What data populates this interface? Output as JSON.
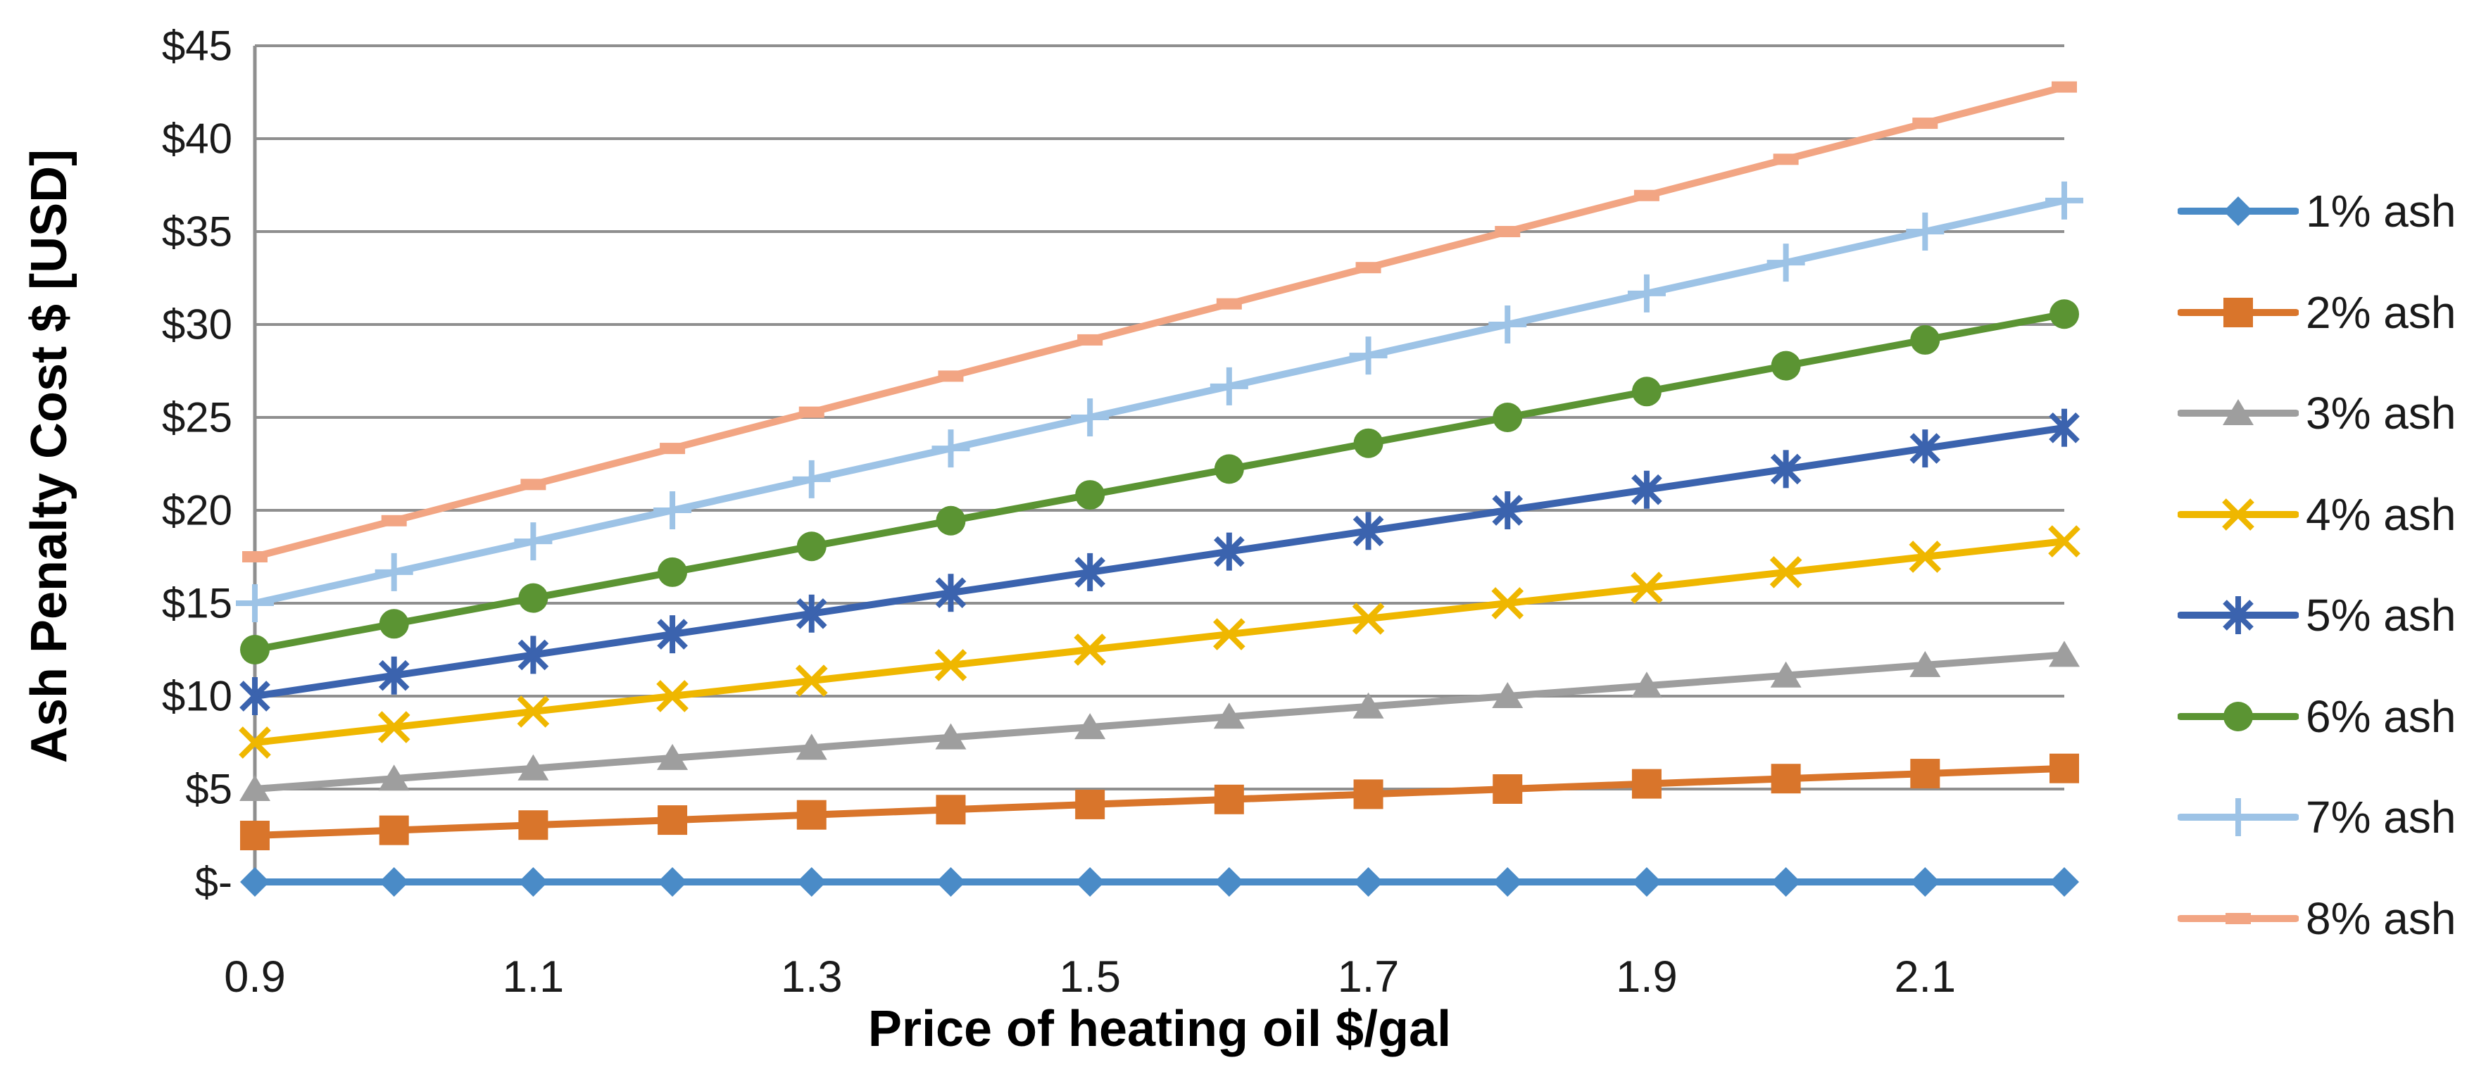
{
  "chart_data": {
    "type": "line",
    "title": "",
    "xlabel": "Price of heating oil $/gal",
    "ylabel": "Ash Penalty Cost $ [USD]",
    "xlim": [
      0.9,
      2.2
    ],
    "ylim": [
      0,
      45
    ],
    "grid": true,
    "legend_position": "right",
    "x": [
      0.9,
      1.0,
      1.1,
      1.2,
      1.3,
      1.4,
      1.5,
      1.6,
      1.7,
      1.8,
      1.9,
      2.0,
      2.1,
      2.2
    ],
    "xticks": [
      0.9,
      1.1,
      1.3,
      1.5,
      1.7,
      1.9,
      2.1
    ],
    "xtick_labels": [
      "0.9",
      "1.1",
      "1.3",
      "1.5",
      "1.7",
      "1.9",
      "2.1"
    ],
    "yticks": [
      0,
      5,
      10,
      15,
      20,
      25,
      30,
      35,
      40,
      45
    ],
    "ytick_labels": [
      "$-",
      "$5",
      "$10",
      "$15",
      "$20",
      "$25",
      "$30",
      "$35",
      "$40",
      "$45"
    ],
    "series": [
      {
        "name": "1% ash",
        "color": "#4A8BC7",
        "marker": "diamond",
        "values": [
          0,
          0,
          0,
          0,
          0,
          0,
          0,
          0,
          0,
          0,
          0,
          0,
          0,
          0
        ]
      },
      {
        "name": "2% ash",
        "color": "#D9752B",
        "marker": "square",
        "values": [
          2.5,
          2.78,
          3.06,
          3.33,
          3.61,
          3.89,
          4.17,
          4.44,
          4.72,
          5.0,
          5.28,
          5.56,
          5.83,
          6.11
        ]
      },
      {
        "name": "3% ash",
        "color": "#9E9E9E",
        "marker": "triangle",
        "values": [
          5.0,
          5.56,
          6.11,
          6.67,
          7.22,
          7.78,
          8.33,
          8.89,
          9.44,
          10.0,
          10.56,
          11.11,
          11.67,
          12.22
        ]
      },
      {
        "name": "4% ash",
        "color": "#EFB700",
        "marker": "x",
        "values": [
          7.5,
          8.33,
          9.17,
          10.0,
          10.83,
          11.67,
          12.5,
          13.33,
          14.17,
          15.0,
          15.83,
          16.67,
          17.5,
          18.33
        ]
      },
      {
        "name": "5% ash",
        "color": "#3B63AE",
        "marker": "asterisk",
        "values": [
          10.0,
          11.11,
          12.22,
          13.33,
          14.44,
          15.56,
          16.67,
          17.78,
          18.89,
          20.0,
          21.11,
          22.22,
          23.33,
          24.44
        ]
      },
      {
        "name": "6% ash",
        "color": "#5B9433",
        "marker": "circle",
        "values": [
          12.5,
          13.89,
          15.28,
          16.67,
          18.06,
          19.44,
          20.83,
          22.22,
          23.61,
          25.0,
          26.39,
          27.78,
          29.17,
          30.56
        ]
      },
      {
        "name": "7% ash",
        "color": "#9DC3E6",
        "marker": "plus",
        "values": [
          15.0,
          16.67,
          18.33,
          20.0,
          21.67,
          23.33,
          25.0,
          26.67,
          28.33,
          30.0,
          31.67,
          33.33,
          35.0,
          36.67
        ]
      },
      {
        "name": "8% ash",
        "color": "#F2A583",
        "marker": "dash",
        "values": [
          17.5,
          19.44,
          21.39,
          23.33,
          25.28,
          27.22,
          29.17,
          31.11,
          33.06,
          35.0,
          36.94,
          38.89,
          40.83,
          42.78
        ]
      }
    ]
  },
  "style": {
    "gridline_color": "#8F8F8F",
    "axis_color": "#8F8F8F",
    "background_color": "#FFFFFF",
    "tick_text_color": "#1A1A1A",
    "title_text_color": "#000000"
  }
}
